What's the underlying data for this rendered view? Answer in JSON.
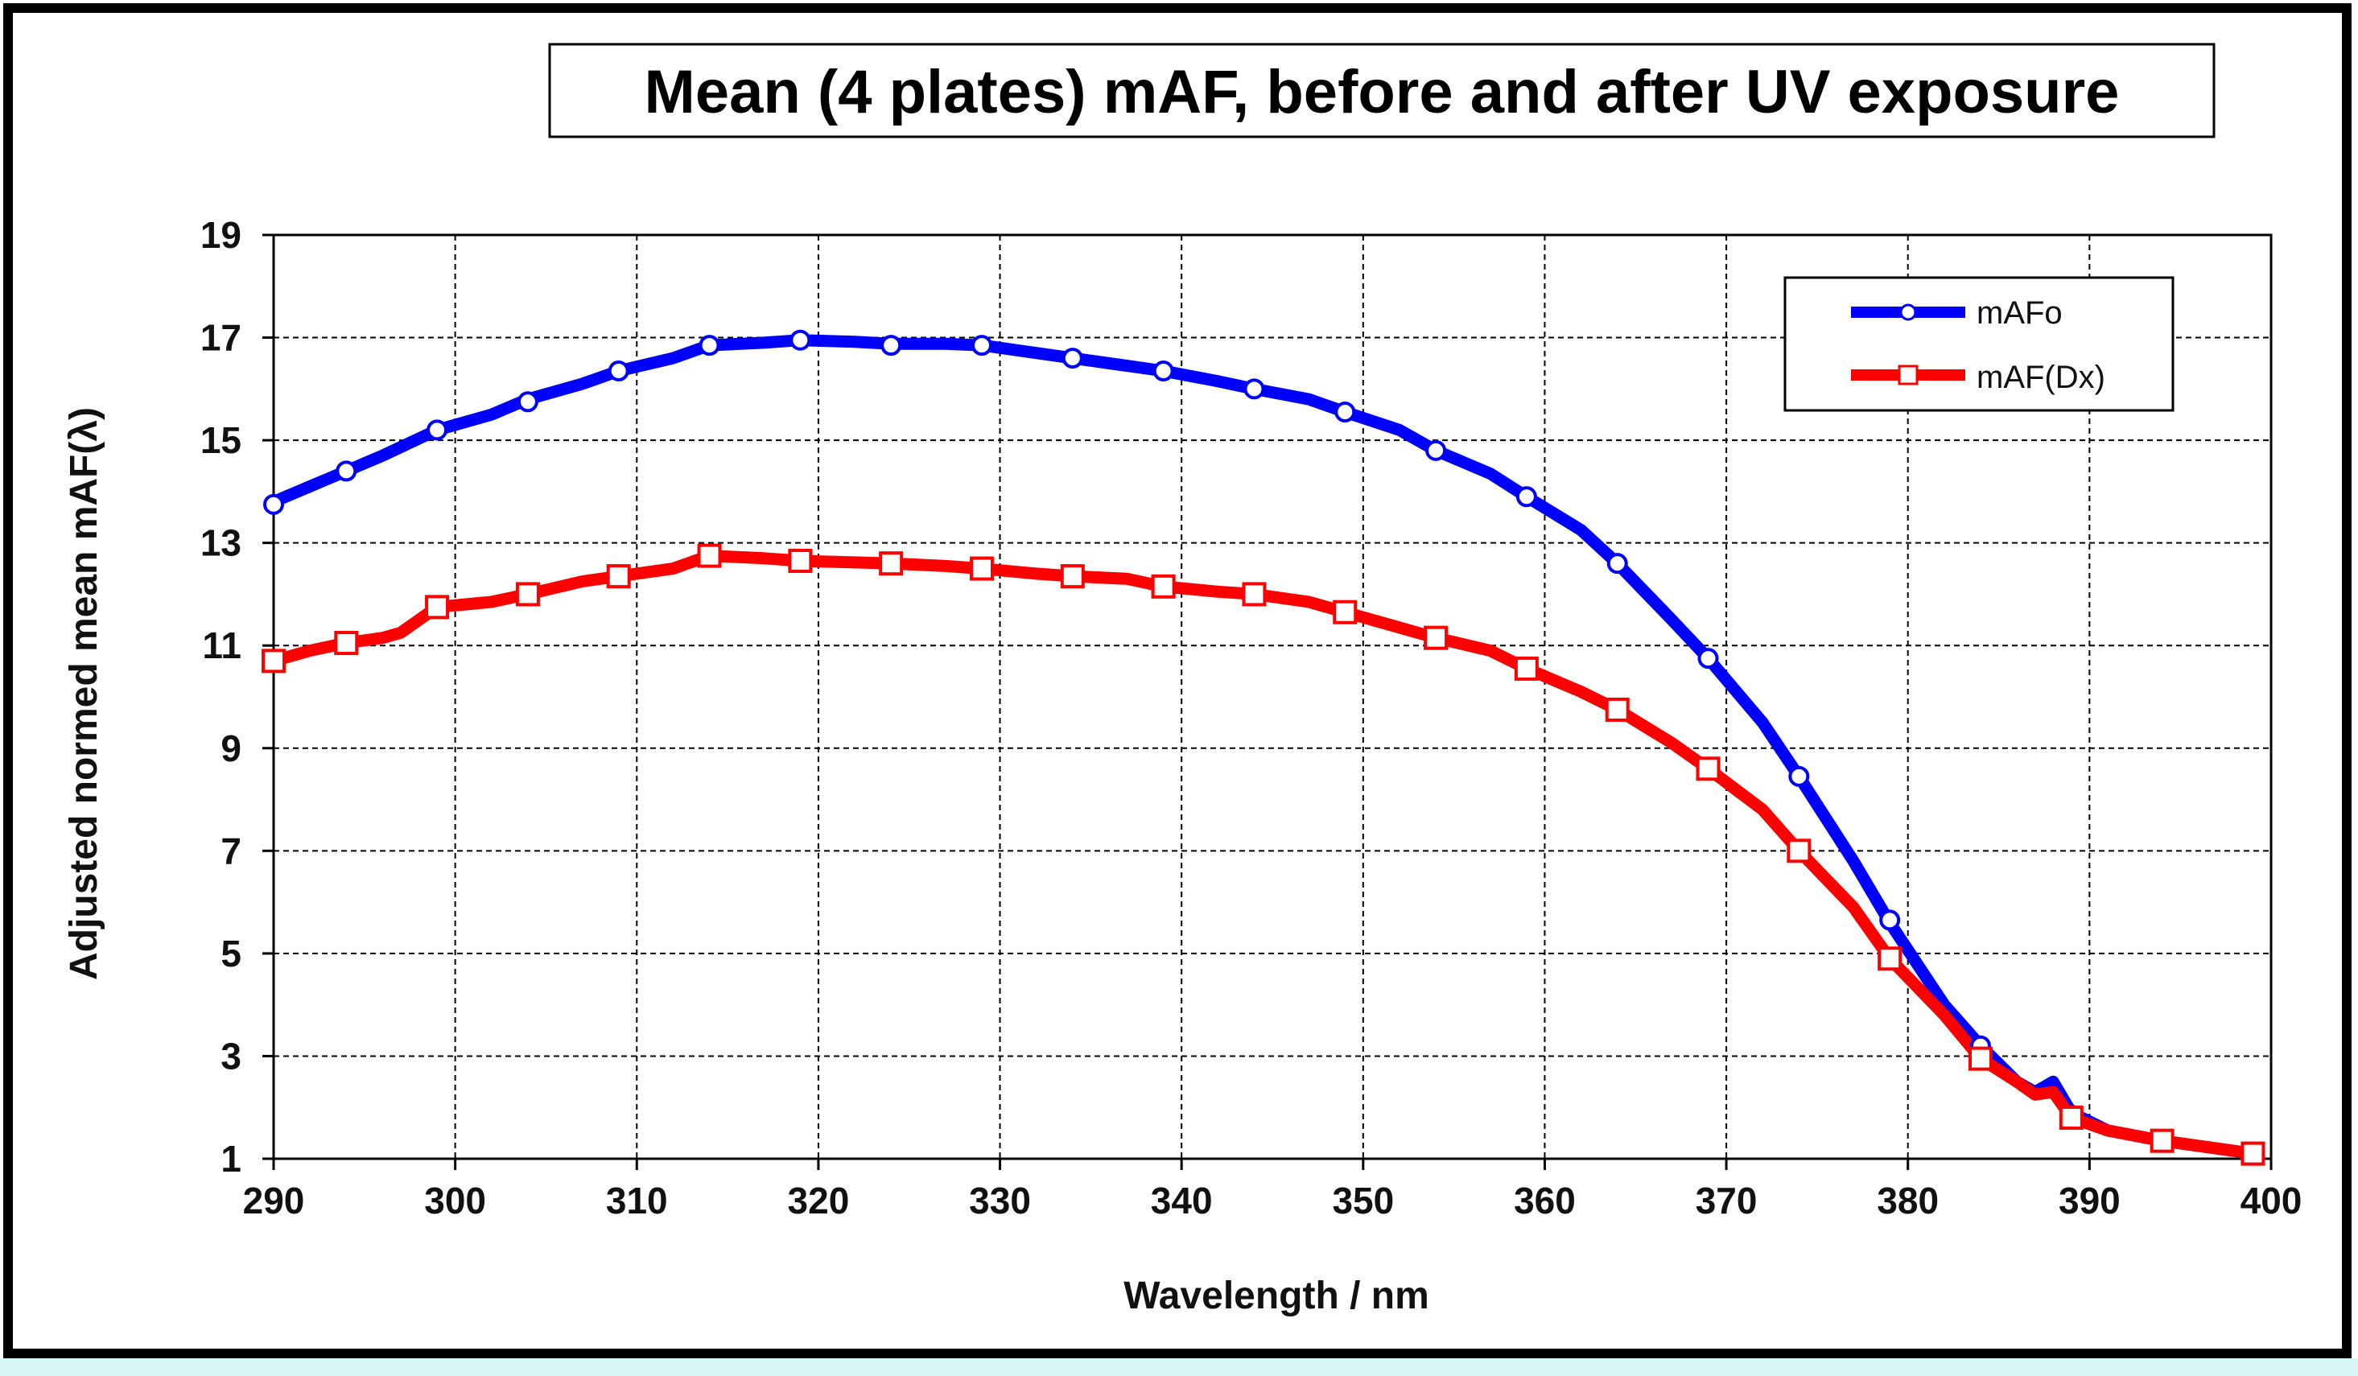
{
  "chart_data": {
    "type": "line",
    "title": "Mean (4 plates) mAF, before and after UV exposure",
    "xlabel": "Wavelength / nm",
    "ylabel": "Adjusted normed mean mAF(λ)",
    "xlim": [
      290,
      400
    ],
    "ylim": [
      1,
      19
    ],
    "xticks": [
      290,
      300,
      310,
      320,
      330,
      340,
      350,
      360,
      370,
      380,
      390,
      400
    ],
    "yticks": [
      1,
      3,
      5,
      7,
      9,
      11,
      13,
      15,
      17,
      19
    ],
    "grid": true,
    "legend_position": "top-right",
    "series": [
      {
        "name": "mAFo",
        "color": "#0000ff",
        "marker": "circle",
        "line": [
          [
            290,
            13.8
          ],
          [
            292,
            14.1
          ],
          [
            294,
            14.4
          ],
          [
            296,
            14.7
          ],
          [
            299,
            15.2
          ],
          [
            302,
            15.5
          ],
          [
            304,
            15.8
          ],
          [
            307,
            16.1
          ],
          [
            309,
            16.35
          ],
          [
            312,
            16.6
          ],
          [
            314,
            16.85
          ],
          [
            317,
            16.9
          ],
          [
            319,
            16.95
          ],
          [
            322,
            16.92
          ],
          [
            324,
            16.88
          ],
          [
            327,
            16.88
          ],
          [
            329,
            16.85
          ],
          [
            332,
            16.7
          ],
          [
            334,
            16.6
          ],
          [
            337,
            16.45
          ],
          [
            339,
            16.35
          ],
          [
            342,
            16.15
          ],
          [
            344,
            16.0
          ],
          [
            347,
            15.8
          ],
          [
            349,
            15.55
          ],
          [
            352,
            15.2
          ],
          [
            354,
            14.8
          ],
          [
            357,
            14.35
          ],
          [
            359,
            13.9
          ],
          [
            362,
            13.25
          ],
          [
            364,
            12.6
          ],
          [
            367,
            11.5
          ],
          [
            369,
            10.75
          ],
          [
            372,
            9.5
          ],
          [
            374,
            8.45
          ],
          [
            377,
            6.8
          ],
          [
            379,
            5.6
          ],
          [
            382,
            4.0
          ],
          [
            384,
            3.2
          ],
          [
            386,
            2.5
          ],
          [
            387,
            2.3
          ],
          [
            388,
            2.5
          ],
          [
            389,
            1.9
          ],
          [
            391,
            1.55
          ],
          [
            394,
            1.35
          ],
          [
            397,
            1.2
          ],
          [
            399,
            1.1
          ]
        ],
        "markers": [
          [
            290,
            13.75
          ],
          [
            294,
            14.4
          ],
          [
            299,
            15.2
          ],
          [
            304,
            15.75
          ],
          [
            309,
            16.35
          ],
          [
            314,
            16.85
          ],
          [
            319,
            16.95
          ],
          [
            324,
            16.85
          ],
          [
            329,
            16.85
          ],
          [
            334,
            16.6
          ],
          [
            339,
            16.35
          ],
          [
            344,
            16.0
          ],
          [
            349,
            15.55
          ],
          [
            354,
            14.8
          ],
          [
            359,
            13.9
          ],
          [
            364,
            12.6
          ],
          [
            369,
            10.75
          ],
          [
            374,
            8.45
          ],
          [
            379,
            5.65
          ],
          [
            384,
            3.2
          ],
          [
            389,
            1.85
          ],
          [
            394,
            1.35
          ],
          [
            399,
            1.1
          ]
        ]
      },
      {
        "name": "mAF(Dx)",
        "color": "#ff0000",
        "marker": "square",
        "line": [
          [
            290,
            10.7
          ],
          [
            292,
            10.9
          ],
          [
            294,
            11.05
          ],
          [
            296,
            11.15
          ],
          [
            297,
            11.25
          ],
          [
            299,
            11.75
          ],
          [
            302,
            11.85
          ],
          [
            304,
            12.0
          ],
          [
            307,
            12.25
          ],
          [
            309,
            12.35
          ],
          [
            312,
            12.5
          ],
          [
            314,
            12.75
          ],
          [
            317,
            12.7
          ],
          [
            319,
            12.65
          ],
          [
            322,
            12.62
          ],
          [
            324,
            12.6
          ],
          [
            327,
            12.55
          ],
          [
            329,
            12.5
          ],
          [
            332,
            12.4
          ],
          [
            334,
            12.35
          ],
          [
            337,
            12.3
          ],
          [
            339,
            12.15
          ],
          [
            342,
            12.05
          ],
          [
            344,
            12.0
          ],
          [
            347,
            11.85
          ],
          [
            349,
            11.65
          ],
          [
            352,
            11.35
          ],
          [
            354,
            11.15
          ],
          [
            357,
            10.9
          ],
          [
            359,
            10.55
          ],
          [
            362,
            10.1
          ],
          [
            364,
            9.75
          ],
          [
            367,
            9.1
          ],
          [
            369,
            8.6
          ],
          [
            372,
            7.8
          ],
          [
            374,
            7.0
          ],
          [
            377,
            5.9
          ],
          [
            379,
            4.9
          ],
          [
            382,
            3.8
          ],
          [
            384,
            2.95
          ],
          [
            386,
            2.5
          ],
          [
            387,
            2.25
          ],
          [
            388,
            2.3
          ],
          [
            389,
            1.8
          ],
          [
            391,
            1.55
          ],
          [
            394,
            1.35
          ],
          [
            397,
            1.2
          ],
          [
            399,
            1.1
          ]
        ],
        "markers": [
          [
            290,
            10.7
          ],
          [
            294,
            11.05
          ],
          [
            299,
            11.75
          ],
          [
            304,
            12.0
          ],
          [
            309,
            12.35
          ],
          [
            314,
            12.75
          ],
          [
            319,
            12.65
          ],
          [
            324,
            12.6
          ],
          [
            329,
            12.5
          ],
          [
            334,
            12.35
          ],
          [
            339,
            12.15
          ],
          [
            344,
            12.0
          ],
          [
            349,
            11.65
          ],
          [
            354,
            11.15
          ],
          [
            359,
            10.55
          ],
          [
            364,
            9.75
          ],
          [
            369,
            8.6
          ],
          [
            374,
            7.0
          ],
          [
            379,
            4.9
          ],
          [
            384,
            2.95
          ],
          [
            389,
            1.8
          ],
          [
            394,
            1.35
          ],
          [
            399,
            1.1
          ]
        ]
      }
    ]
  }
}
